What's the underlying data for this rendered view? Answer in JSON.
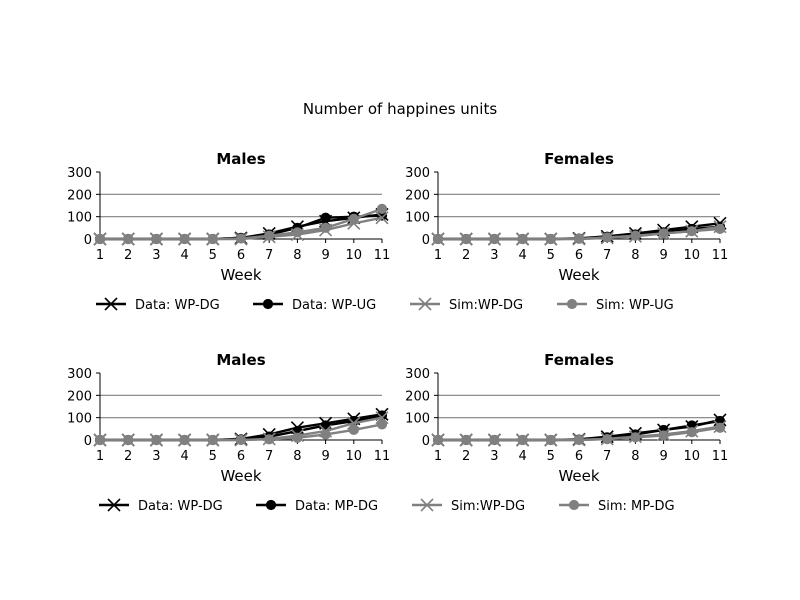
{
  "figure": {
    "title": "Number of happines units"
  },
  "legends": [
    {
      "entries": [
        {
          "label": "Data: WP-DG",
          "color": "#000000",
          "marker": "x"
        },
        {
          "label": "Data: WP-UG",
          "color": "#000000",
          "marker": "o"
        },
        {
          "label": "Sim:WP-DG",
          "color": "#808080",
          "marker": "x"
        },
        {
          "label": "Sim: WP-UG",
          "color": "#808080",
          "marker": "o"
        }
      ]
    },
    {
      "entries": [
        {
          "label": "Data: WP-DG",
          "color": "#000000",
          "marker": "x"
        },
        {
          "label": "Data: MP-DG",
          "color": "#000000",
          "marker": "o"
        },
        {
          "label": "Sim:WP-DG",
          "color": "#808080",
          "marker": "x"
        },
        {
          "label": "Sim: MP-DG",
          "color": "#808080",
          "marker": "o"
        }
      ]
    }
  ],
  "chart_data": [
    {
      "type": "line",
      "title": "Males",
      "xlabel": "Week",
      "ylabel": "",
      "x": [
        1,
        2,
        3,
        4,
        5,
        6,
        7,
        8,
        9,
        10,
        11
      ],
      "xlim": [
        1,
        11
      ],
      "ylim": [
        0,
        300
      ],
      "yticks": [
        0,
        100,
        200,
        300
      ],
      "xticks": [
        1,
        2,
        3,
        4,
        5,
        6,
        7,
        8,
        9,
        10,
        11
      ],
      "grid": "horizontal lines at 100 and 200",
      "series": [
        {
          "name": "Data: WP-DG",
          "color": "#000000",
          "marker": "x",
          "values": [
            0,
            0,
            0,
            0,
            0,
            5,
            25,
            55,
            80,
            95,
            110
          ]
        },
        {
          "name": "Data: WP-UG",
          "color": "#000000",
          "marker": "o",
          "values": [
            0,
            0,
            0,
            0,
            0,
            5,
            20,
            50,
            95,
            100,
            105
          ]
        },
        {
          "name": "Sim:WP-DG",
          "color": "#808080",
          "marker": "x",
          "values": [
            0,
            0,
            0,
            0,
            0,
            0,
            10,
            20,
            40,
            70,
            95
          ]
        },
        {
          "name": "Sim: WP-UG",
          "color": "#808080",
          "marker": "o",
          "values": [
            0,
            0,
            0,
            0,
            0,
            2,
            15,
            30,
            50,
            90,
            135
          ]
        }
      ]
    },
    {
      "type": "line",
      "title": "Females",
      "xlabel": "Week",
      "ylabel": "",
      "x": [
        1,
        2,
        3,
        4,
        5,
        6,
        7,
        8,
        9,
        10,
        11
      ],
      "xlim": [
        1,
        11
      ],
      "ylim": [
        0,
        300
      ],
      "yticks": [
        0,
        100,
        200,
        300
      ],
      "xticks": [
        1,
        2,
        3,
        4,
        5,
        6,
        7,
        8,
        9,
        10,
        11
      ],
      "grid": "horizontal lines at 100 and 200",
      "series": [
        {
          "name": "Data: WP-DG",
          "color": "#000000",
          "marker": "x",
          "values": [
            0,
            0,
            0,
            0,
            0,
            3,
            12,
            25,
            40,
            55,
            70
          ]
        },
        {
          "name": "Data: WP-UG",
          "color": "#000000",
          "marker": "o",
          "values": [
            0,
            0,
            0,
            0,
            0,
            2,
            10,
            20,
            30,
            45,
            55
          ]
        },
        {
          "name": "Sim:WP-DG",
          "color": "#808080",
          "marker": "x",
          "values": [
            0,
            0,
            0,
            0,
            0,
            0,
            5,
            12,
            25,
            35,
            55
          ]
        },
        {
          "name": "Sim: WP-UG",
          "color": "#808080",
          "marker": "o",
          "values": [
            0,
            0,
            0,
            0,
            0,
            1,
            7,
            15,
            25,
            35,
            45
          ]
        }
      ]
    },
    {
      "type": "line",
      "title": "Males",
      "xlabel": "Week",
      "ylabel": "",
      "x": [
        1,
        2,
        3,
        4,
        5,
        6,
        7,
        8,
        9,
        10,
        11
      ],
      "xlim": [
        1,
        11
      ],
      "ylim": [
        0,
        300
      ],
      "yticks": [
        0,
        100,
        200,
        300
      ],
      "xticks": [
        1,
        2,
        3,
        4,
        5,
        6,
        7,
        8,
        9,
        10,
        11
      ],
      "grid": "horizontal lines at 100 and 200",
      "series": [
        {
          "name": "Data: WP-DG",
          "color": "#000000",
          "marker": "x",
          "values": [
            0,
            0,
            0,
            0,
            0,
            5,
            25,
            55,
            75,
            95,
            115
          ]
        },
        {
          "name": "Data: MP-DG",
          "color": "#000000",
          "marker": "o",
          "values": [
            0,
            0,
            0,
            0,
            0,
            3,
            15,
            40,
            65,
            85,
            110
          ]
        },
        {
          "name": "Sim:WP-DG",
          "color": "#808080",
          "marker": "x",
          "values": [
            0,
            0,
            0,
            0,
            0,
            0,
            5,
            20,
            40,
            75,
            100
          ]
        },
        {
          "name": "Sim: MP-DG",
          "color": "#808080",
          "marker": "o",
          "values": [
            0,
            0,
            0,
            0,
            0,
            0,
            3,
            10,
            25,
            45,
            70
          ]
        }
      ]
    },
    {
      "type": "line",
      "title": "Females",
      "xlabel": "Week",
      "ylabel": "",
      "x": [
        1,
        2,
        3,
        4,
        5,
        6,
        7,
        8,
        9,
        10,
        11
      ],
      "xlim": [
        1,
        11
      ],
      "ylim": [
        0,
        300
      ],
      "yticks": [
        0,
        100,
        200,
        300
      ],
      "xticks": [
        1,
        2,
        3,
        4,
        5,
        6,
        7,
        8,
        9,
        10,
        11
      ],
      "grid": "horizontal lines at 100 and 200",
      "series": [
        {
          "name": "Data: WP-DG",
          "color": "#000000",
          "marker": "x",
          "values": [
            0,
            0,
            0,
            0,
            0,
            3,
            15,
            30,
            45,
            60,
            90
          ]
        },
        {
          "name": "Data: MP-DG",
          "color": "#000000",
          "marker": "o",
          "values": [
            0,
            0,
            0,
            0,
            0,
            2,
            12,
            25,
            45,
            65,
            85
          ]
        },
        {
          "name": "Sim:WP-DG",
          "color": "#808080",
          "marker": "x",
          "values": [
            0,
            0,
            0,
            0,
            0,
            0,
            5,
            15,
            25,
            40,
            60
          ]
        },
        {
          "name": "Sim: MP-DG",
          "color": "#808080",
          "marker": "o",
          "values": [
            0,
            0,
            0,
            0,
            0,
            0,
            4,
            12,
            20,
            35,
            55
          ]
        }
      ]
    }
  ]
}
